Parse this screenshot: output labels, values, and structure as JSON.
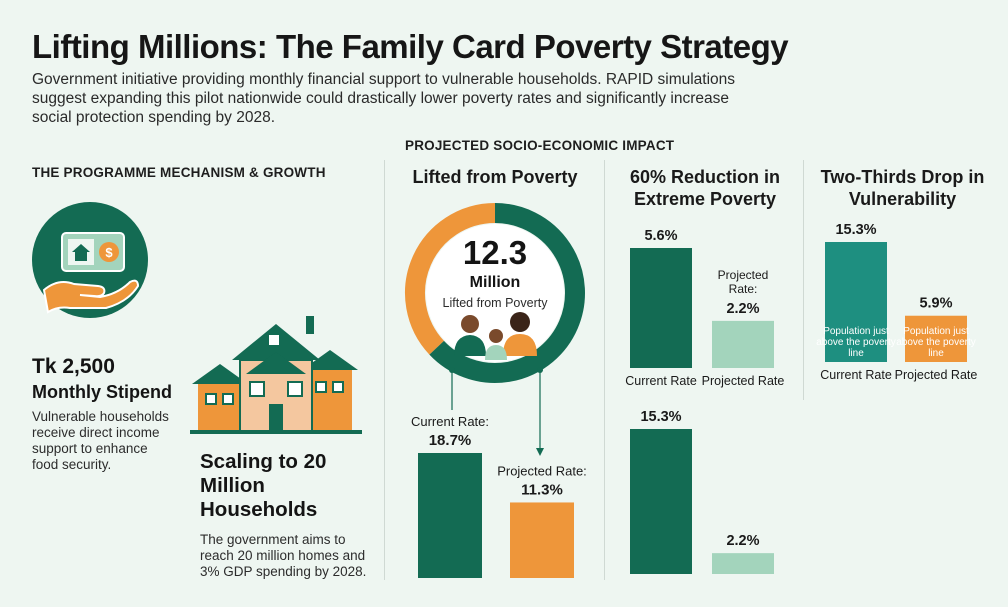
{
  "header": {
    "title": "Lifting Millions: The Family Card Poverty Strategy",
    "subtitle": "Government initiative providing monthly financial support to vulnerable households. RAPID simulations suggest expanding this pilot nationwide could drastically lower poverty rates and significantly increase social protection spending by 2028."
  },
  "mechanism": {
    "heading": "THE PROGRAMME MECHANISM & GROWTH",
    "stipend_amount": "Tk 2,500",
    "stipend_label": "Monthly Stipend",
    "stipend_desc": "Vulnerable households receive direct income support to enhance food security.",
    "scaling_title": "Scaling to 20 Million Households",
    "scaling_desc": "The government aims to reach 20 million homes and 3% GDP spending by 2028.",
    "icons": [
      "cash-card-icon",
      "hand-icon",
      "houses-icon"
    ]
  },
  "impact": {
    "heading": "PROJECTED SOCIO-ECONOMIC IMPACT",
    "lifted": {
      "title": "Lifted from Poverty",
      "number": "12.3",
      "unit": "Million",
      "caption": "Lifted from Poverty",
      "icon": "family-icon"
    },
    "extreme": {
      "title": "60% Reduction in Extreme Poverty"
    },
    "vulnerability": {
      "title": "Two-Thirds Drop in Vulnerability"
    }
  },
  "colors": {
    "dark_green": "#136b53",
    "orange": "#ee963a",
    "teal": "#1e8f80",
    "light_green": "#a3d4bc",
    "background": "#eef6f1"
  },
  "chart_data": [
    {
      "type": "pie",
      "name": "donut",
      "categories": [
        "",
        ""
      ],
      "values": [
        37,
        63
      ],
      "colors": [
        "#ee963a",
        "#136b53"
      ],
      "title": "Lifted from Poverty"
    },
    {
      "type": "bar",
      "name": "poverty-rate",
      "categories": [
        "Current Rate:",
        "Projected Rate:"
      ],
      "values": [
        18.7,
        11.3
      ],
      "labels": [
        "18.7%",
        "11.3%"
      ],
      "colors": [
        "#136b53",
        "#ee963a"
      ],
      "ylim": [
        0,
        20
      ]
    },
    {
      "type": "bar",
      "name": "extreme-poverty",
      "title": "60% Reduction in Extreme Poverty",
      "categories": [
        "Current Rate",
        "Projected Rate"
      ],
      "values": [
        5.6,
        2.2
      ],
      "labels": [
        "5.6%",
        "2.2%"
      ],
      "annotations": [
        "Projected Rate:"
      ],
      "colors": [
        "#136b53",
        "#a3d4bc"
      ],
      "ylim": [
        0,
        6
      ]
    },
    {
      "type": "bar",
      "name": "extreme-poverty-lower",
      "categories": [
        "",
        ""
      ],
      "values": [
        15.3,
        2.2
      ],
      "labels": [
        "15.3%",
        "2.2%"
      ],
      "colors": [
        "#136b53",
        "#a3d4bc"
      ],
      "ylim": [
        0,
        16
      ]
    },
    {
      "type": "bar",
      "name": "vulnerability",
      "title": "Two-Thirds Drop in Vulnerability",
      "categories": [
        "Current Rate",
        "Projected Rate"
      ],
      "values": [
        15.3,
        5.9
      ],
      "labels": [
        "15.3%",
        "5.9%"
      ],
      "bar_text": [
        "Population just above the poverty line",
        "Population just above the poverty line"
      ],
      "colors": [
        "#1e8f80",
        "#ee963a"
      ],
      "ylim": [
        0,
        16
      ]
    }
  ]
}
